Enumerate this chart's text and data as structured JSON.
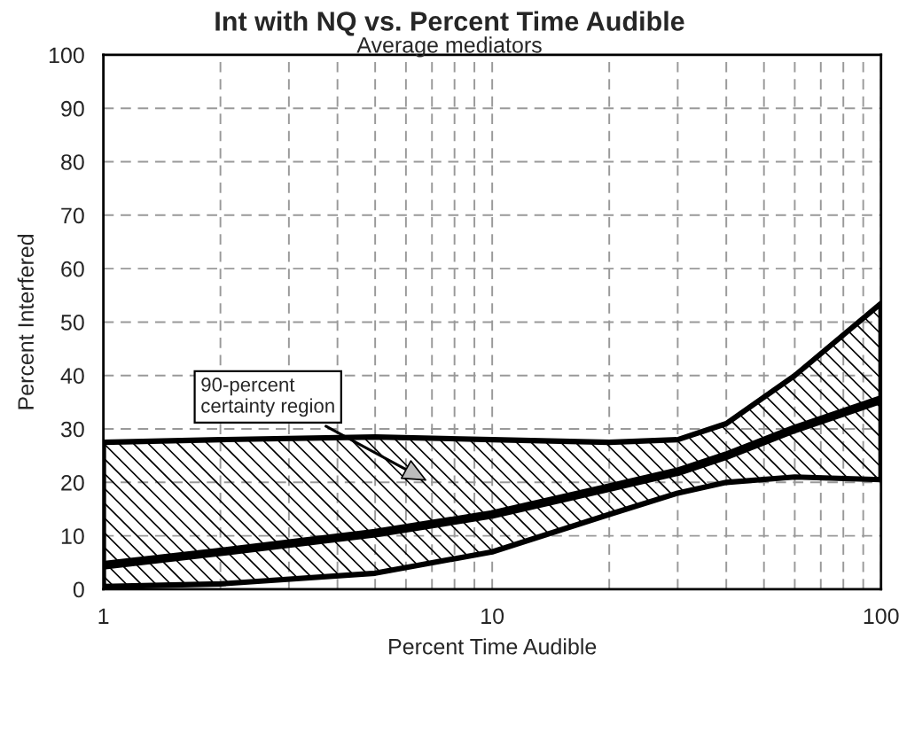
{
  "chart_data": {
    "type": "line",
    "title": "Int with NQ vs. Percent Time Audible",
    "subtitle": "Average mediators",
    "xlabel": "Percent Time Audible",
    "ylabel": "Percent Interfered",
    "x": [
      1,
      2,
      5,
      10,
      20,
      30,
      40,
      60,
      100
    ],
    "series": [
      {
        "color": "#000000",
        "values": [
          4.5,
          7,
          10.5,
          14,
          19,
          22,
          25,
          30,
          35.5
        ],
        "lower": [
          0.5,
          1,
          3,
          7,
          14,
          18,
          20,
          21,
          20.5
        ],
        "upper": [
          27.5,
          28,
          28.5,
          28,
          27.5,
          28,
          31,
          40,
          53.5
        ]
      }
    ],
    "annotations": [
      "90-percent\ncertainty region"
    ],
    "log": "x",
    "xlim": [
      1,
      100
    ],
    "xticks": [
      1,
      10,
      100
    ],
    "ylim": [
      0,
      100
    ],
    "yticks": [
      0,
      10,
      20,
      30,
      40,
      50,
      60,
      70,
      80,
      90,
      100
    ],
    "grid": true,
    "legend": false,
    "marker": "none",
    "line_style": "solid"
  }
}
